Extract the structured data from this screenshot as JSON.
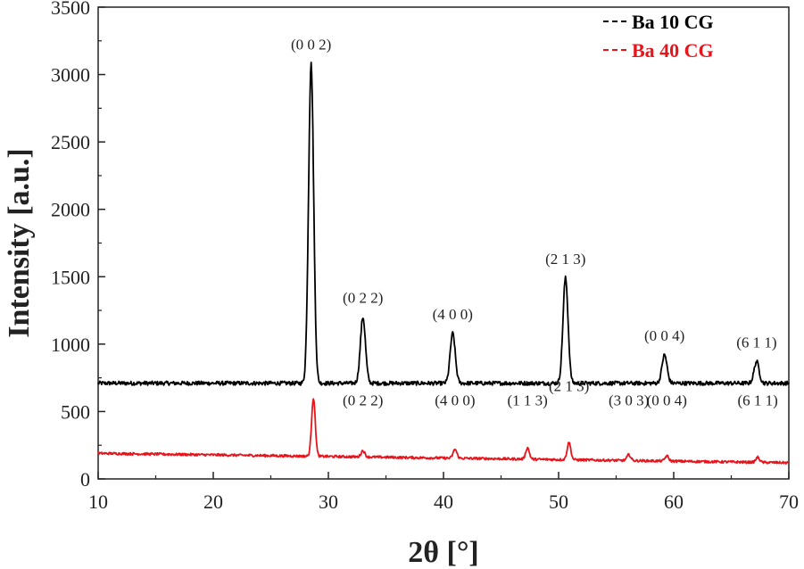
{
  "chart_data": {
    "type": "line",
    "xlabel": "2θ [°]",
    "ylabel": "Intensity [a.u.]",
    "xlim": [
      10,
      70
    ],
    "ylim": [
      0,
      3500
    ],
    "x_ticks": [
      10,
      20,
      30,
      40,
      50,
      60,
      70
    ],
    "y_ticks": [
      0,
      500,
      1000,
      1500,
      2000,
      2500,
      3000,
      3500
    ],
    "x_tick_labels": [
      "10",
      "20",
      "30",
      "40",
      "50",
      "60",
      "70"
    ],
    "y_tick_labels": [
      "0",
      "500",
      "1000",
      "1500",
      "2000",
      "2500",
      "3000",
      "3500"
    ],
    "legend_position": "top-right",
    "series": [
      {
        "name": "Ba 10 CG",
        "color": "#000000",
        "baseline": 710,
        "peaks": [
          {
            "x": 28.5,
            "y": 3080,
            "label": "(0 0 2)"
          },
          {
            "x": 33.0,
            "y": 1200,
            "label": "(0 2 2)"
          },
          {
            "x": 40.8,
            "y": 1080,
            "label": "(4 0 0)"
          },
          {
            "x": 50.6,
            "y": 1490,
            "label": "(2 1 3)"
          },
          {
            "x": 59.2,
            "y": 920,
            "label": "(0 0 4)"
          },
          {
            "x": 67.2,
            "y": 870,
            "label": "(6 1 1)"
          }
        ]
      },
      {
        "name": "Ba 40 CG",
        "color": "#e8141b",
        "baseline_start": 190,
        "baseline_end": 120,
        "peaks": [
          {
            "x": 28.7,
            "y": 600,
            "label": ""
          },
          {
            "x": 33.0,
            "y": 210,
            "label": "(0 2 2)"
          },
          {
            "x": 41.0,
            "y": 220,
            "label": "(4 0 0)"
          },
          {
            "x": 47.3,
            "y": 230,
            "label": "(1 1 3)"
          },
          {
            "x": 50.9,
            "y": 270,
            "label": "(2 1 3)"
          },
          {
            "x": 56.1,
            "y": 180,
            "label": "(3 0 3)"
          },
          {
            "x": 59.4,
            "y": 170,
            "label": "(0 0 4)"
          },
          {
            "x": 67.3,
            "y": 160,
            "label": "(6 1 1)"
          }
        ]
      }
    ]
  }
}
